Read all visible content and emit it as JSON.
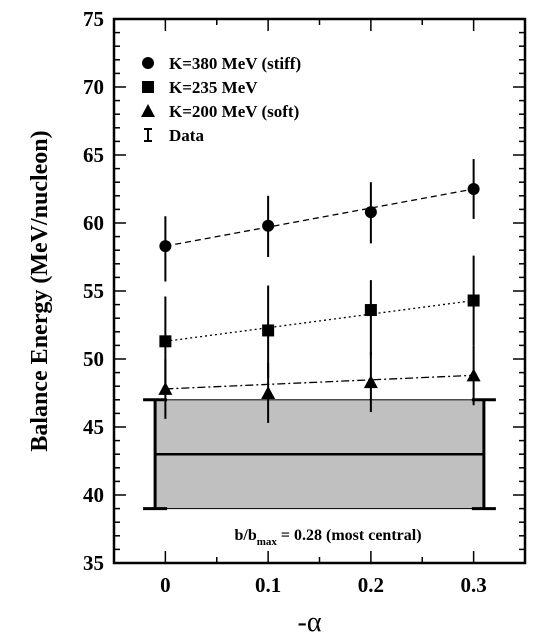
{
  "chart_data": {
    "type": "scatter",
    "xlabel": "-α",
    "ylabel": "Balance Energy (MeV/nucleon)",
    "xlim": [
      -0.05,
      0.35
    ],
    "ylim": [
      35,
      75
    ],
    "x_ticks": [
      "0",
      "0.1",
      "0.2",
      "0.3"
    ],
    "y_ticks": [
      "35",
      "40",
      "45",
      "50",
      "55",
      "60",
      "65",
      "70",
      "75"
    ],
    "legend_position": "top-left",
    "series": [
      {
        "name": "K=380 MeV (stiff)",
        "marker": "circle",
        "line_style": "dashed",
        "x": [
          0,
          0.1,
          0.2,
          0.3
        ],
        "y": [
          58.3,
          59.8,
          60.8,
          62.5
        ],
        "y_err_low": [
          2.6,
          2.3,
          2.3,
          2.2
        ],
        "y_err_high": [
          2.2,
          2.2,
          2.2,
          2.2
        ]
      },
      {
        "name": "K=235 MeV",
        "marker": "square",
        "line_style": "dotted",
        "x": [
          0,
          0.1,
          0.2,
          0.3
        ],
        "y": [
          51.3,
          52.1,
          53.6,
          54.3
        ],
        "y_err_low": [
          3.3,
          3.5,
          3.3,
          3.3
        ],
        "y_err_high": [
          3.3,
          3.3,
          2.2,
          3.3
        ]
      },
      {
        "name": "K=200 MeV (soft)",
        "marker": "triangle",
        "line_style": "dashdot",
        "x": [
          0,
          0.1,
          0.2,
          0.3
        ],
        "y": [
          47.8,
          47.5,
          48.3,
          48.8
        ],
        "y_err_low": [
          2.2,
          2.2,
          2.2,
          2.2
        ],
        "y_err_high": [
          2.2,
          2.2,
          2.2,
          2.2
        ]
      }
    ],
    "data_band": {
      "name": "Data",
      "x_range": [
        -0.01,
        0.31
      ],
      "y": 43,
      "y_low": 39,
      "y_high": 47,
      "fill": "#c0c0c0"
    },
    "annotation": {
      "prefix": "b/b",
      "subscript": "max",
      "suffix": " = 0.28 (most central)"
    }
  }
}
